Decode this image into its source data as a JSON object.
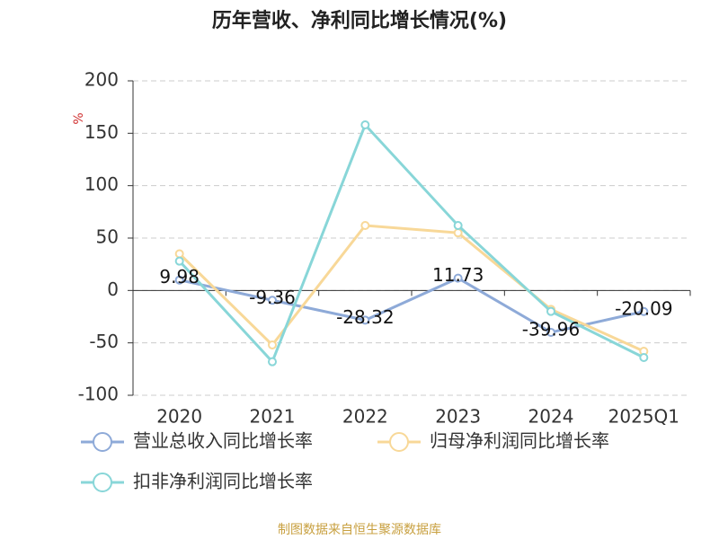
{
  "chart_data": {
    "type": "line",
    "title": "历年营收、净利同比增长情况(%)",
    "y_label": "%",
    "categories": [
      "2020",
      "2021",
      "2022",
      "2023",
      "2024",
      "2025Q1"
    ],
    "series": [
      {
        "name": "营业总收入同比增长率",
        "color": "#8eaad8",
        "values": [
          9.98,
          -9.36,
          -28.32,
          11.73,
          -39.96,
          -20.09
        ],
        "data_labels": true
      },
      {
        "name": "归母净利润同比增长率",
        "color": "#f8d898",
        "values": [
          35,
          -52,
          62,
          55,
          -18,
          -58
        ]
      },
      {
        "name": "扣非净利润同比增长率",
        "color": "#88d6d8",
        "values": [
          28,
          -68,
          158,
          62,
          -20,
          -64
        ]
      }
    ],
    "ylim": [
      -100,
      200
    ],
    "yticks": [
      -100,
      -50,
      0,
      50,
      100,
      150,
      200
    ],
    "grid": true,
    "source": "制图数据来自恒生聚源数据库"
  }
}
